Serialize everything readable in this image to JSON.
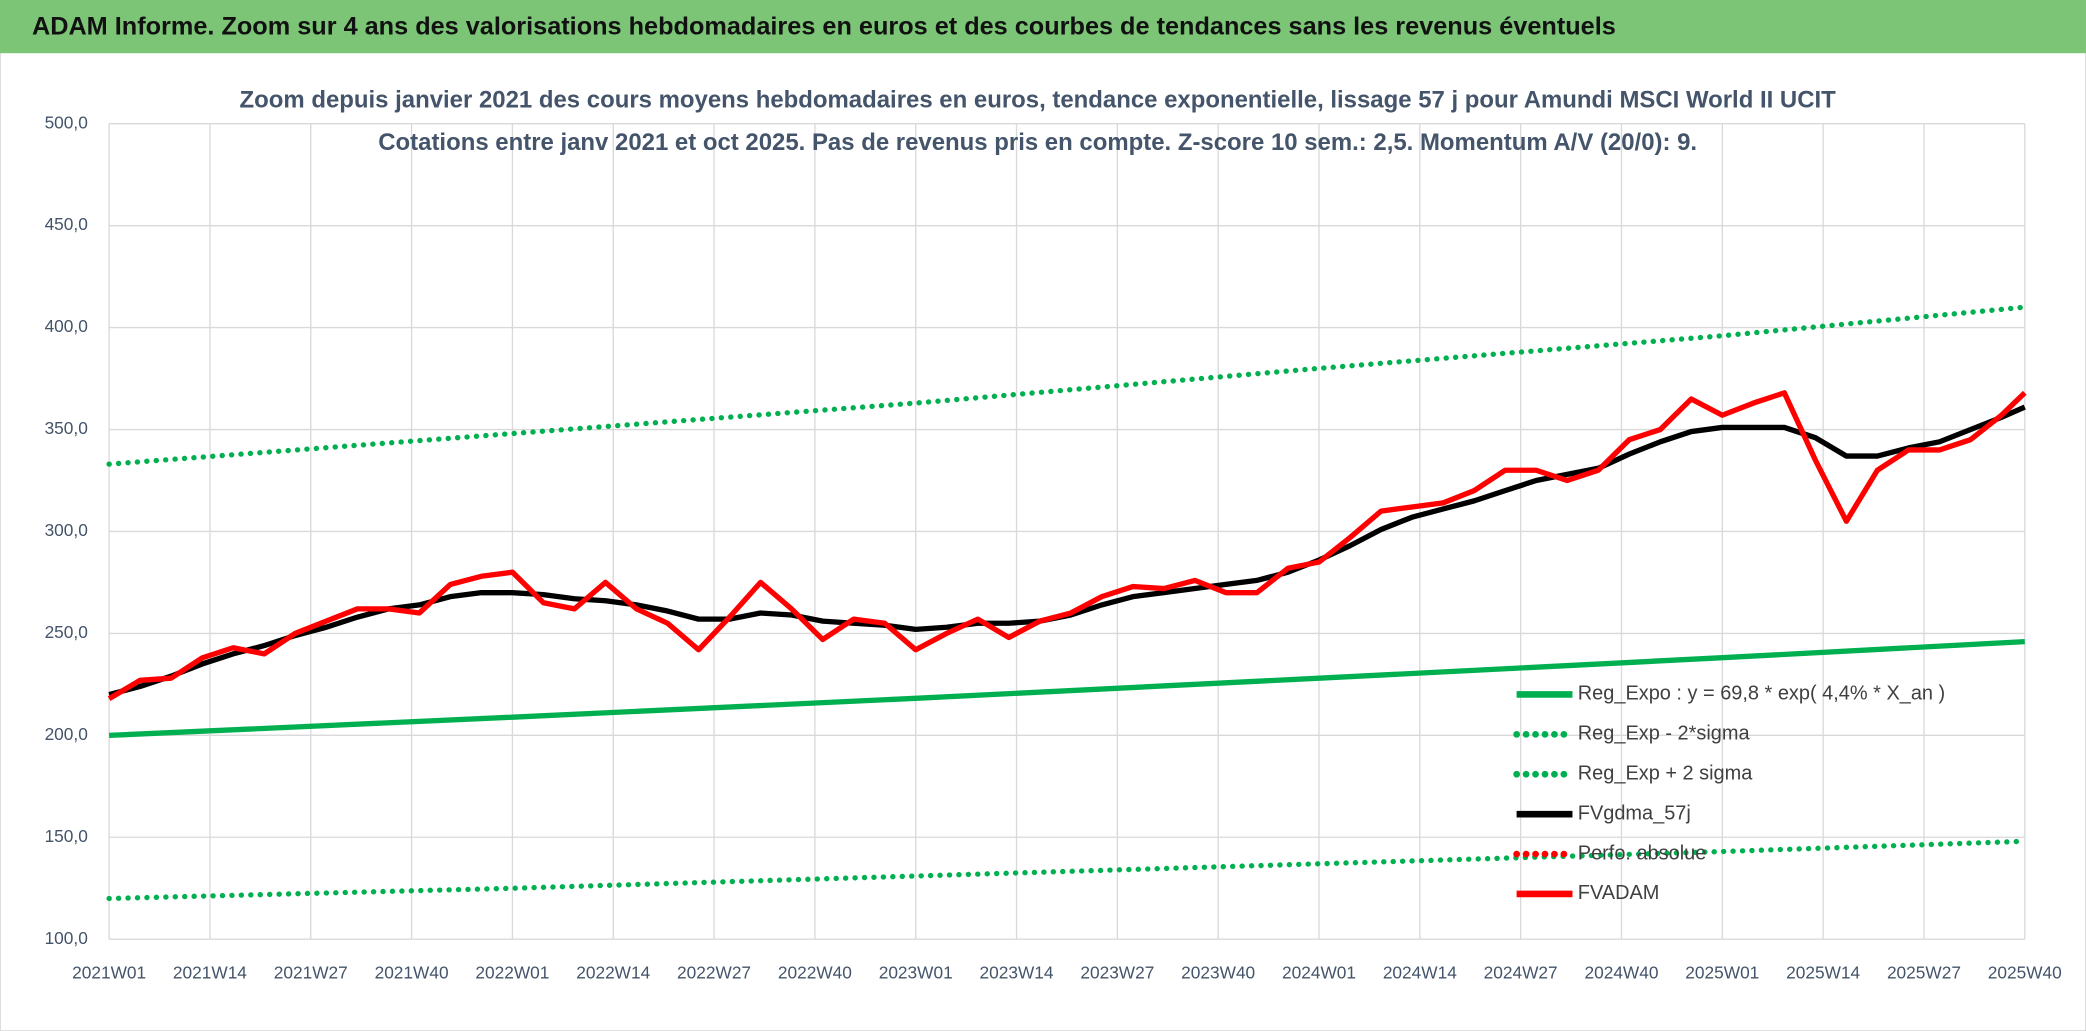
{
  "header": {
    "title": "ADAM Informe. Zoom sur 4 ans des valorisations hebdomadaires en euros et des courbes de tendances sans les revenus éventuels"
  },
  "chart_data": {
    "type": "line",
    "title": "Zoom depuis janvier 2021 des cours moyens hebdomadaires en euros, tendance exponentielle, lissage 57 j pour Amundi MSCI World II UCIT",
    "subtitle": "Cotations entre janv 2021 et oct 2025. Pas de revenus pris en compte. Z-score 10 sem.: 2,5. Momentum A/V (20/0): 9.",
    "xlim": [
      0,
      247
    ],
    "xticks": [
      {
        "value": 0,
        "label": "2021W01"
      },
      {
        "value": 13,
        "label": "2021W14"
      },
      {
        "value": 26,
        "label": "2021W27"
      },
      {
        "value": 39,
        "label": "2021W40"
      },
      {
        "value": 52,
        "label": "2022W01"
      },
      {
        "value": 65,
        "label": "2022W14"
      },
      {
        "value": 78,
        "label": "2022W27"
      },
      {
        "value": 91,
        "label": "2022W40"
      },
      {
        "value": 104,
        "label": "2023W01"
      },
      {
        "value": 117,
        "label": "2023W14"
      },
      {
        "value": 130,
        "label": "2023W27"
      },
      {
        "value": 143,
        "label": "2023W40"
      },
      {
        "value": 156,
        "label": "2024W01"
      },
      {
        "value": 169,
        "label": "2024W14"
      },
      {
        "value": 182,
        "label": "2024W27"
      },
      {
        "value": 195,
        "label": "2024W40"
      },
      {
        "value": 208,
        "label": "2025W01"
      },
      {
        "value": 221,
        "label": "2025W14"
      },
      {
        "value": 234,
        "label": "2025W27"
      },
      {
        "value": 247,
        "label": "2025W40"
      }
    ],
    "ylim": [
      100,
      500
    ],
    "yticks": [
      {
        "value": 100,
        "label": "100,0"
      },
      {
        "value": 150,
        "label": "150,0"
      },
      {
        "value": 200,
        "label": "200,0"
      },
      {
        "value": 250,
        "label": "250,0"
      },
      {
        "value": 300,
        "label": "300,0"
      },
      {
        "value": 350,
        "label": "350,0"
      },
      {
        "value": 400,
        "label": "400,0"
      },
      {
        "value": 450,
        "label": "450,0"
      },
      {
        "value": 500,
        "label": "500,0"
      }
    ],
    "grid": true,
    "legend": "bottom-right",
    "series": [
      {
        "name": "Reg_Expo : y = 69,8 * exp( 4,4% *  X_an )",
        "color": "#00b050",
        "style": "solid",
        "x": [
          0,
          52,
          104,
          156,
          208,
          247
        ],
        "values": [
          200,
          208.9,
          218.2,
          228,
          238.1,
          246
        ]
      },
      {
        "name": "Reg_Exp - 2*sigma",
        "color": "#00b050",
        "style": "dotted",
        "x": [
          0,
          52,
          104,
          156,
          208,
          247
        ],
        "values": [
          120,
          125,
          131,
          137,
          143,
          148
        ]
      },
      {
        "name": "Reg_Exp + 2 sigma",
        "color": "#00b050",
        "style": "dotted",
        "x": [
          0,
          52,
          104,
          156,
          208,
          247
        ],
        "values": [
          333,
          348,
          363,
          380,
          396,
          410
        ]
      },
      {
        "name": "FVgdma_57j",
        "color": "#000000",
        "style": "solid",
        "x": [
          0,
          4,
          8,
          12,
          16,
          20,
          24,
          28,
          32,
          36,
          40,
          44,
          48,
          52,
          56,
          60,
          64,
          68,
          72,
          76,
          80,
          84,
          88,
          92,
          96,
          100,
          104,
          108,
          112,
          116,
          120,
          124,
          128,
          132,
          136,
          140,
          144,
          148,
          152,
          156,
          160,
          164,
          168,
          172,
          176,
          180,
          184,
          188,
          192,
          196,
          200,
          204,
          208,
          212,
          216,
          220,
          224,
          228,
          232,
          236,
          240,
          244,
          247
        ],
        "values": [
          220,
          224,
          229,
          235,
          240,
          244,
          249,
          253,
          258,
          262,
          264,
          268,
          270,
          270,
          269,
          267,
          266,
          264,
          261,
          257,
          257,
          260,
          259,
          256,
          255,
          254,
          252,
          253,
          255,
          255,
          256,
          259,
          264,
          268,
          270,
          272,
          274,
          276,
          280,
          286,
          293,
          301,
          307,
          311,
          315,
          320,
          325,
          328,
          331,
          338,
          344,
          349,
          351,
          351,
          351,
          346,
          337,
          337,
          341,
          344,
          350,
          356,
          361
        ]
      },
      {
        "name": "Perfo. absolue",
        "color": "#ff0000",
        "style": "dotted",
        "x": [],
        "values": []
      },
      {
        "name": "FVADAM",
        "color": "#ff0000",
        "style": "solid",
        "x": [
          0,
          4,
          8,
          12,
          16,
          20,
          24,
          28,
          32,
          36,
          40,
          44,
          48,
          52,
          56,
          60,
          64,
          68,
          72,
          76,
          80,
          84,
          88,
          92,
          96,
          100,
          104,
          108,
          112,
          116,
          120,
          124,
          128,
          132,
          136,
          140,
          144,
          148,
          152,
          156,
          160,
          164,
          168,
          172,
          176,
          180,
          184,
          188,
          192,
          196,
          200,
          204,
          208,
          212,
          216,
          220,
          224,
          228,
          232,
          236,
          240,
          244,
          247
        ],
        "values": [
          218,
          227,
          228,
          238,
          243,
          240,
          250,
          256,
          262,
          262,
          260,
          274,
          278,
          280,
          265,
          262,
          275,
          262,
          255,
          242,
          258,
          275,
          262,
          247,
          257,
          255,
          242,
          250,
          257,
          248,
          256,
          260,
          268,
          273,
          272,
          276,
          270,
          270,
          282,
          285,
          297,
          310,
          312,
          314,
          320,
          330,
          330,
          325,
          330,
          345,
          350,
          365,
          357,
          363,
          368,
          335,
          305,
          330,
          340,
          340,
          345,
          357,
          368
        ]
      }
    ]
  }
}
